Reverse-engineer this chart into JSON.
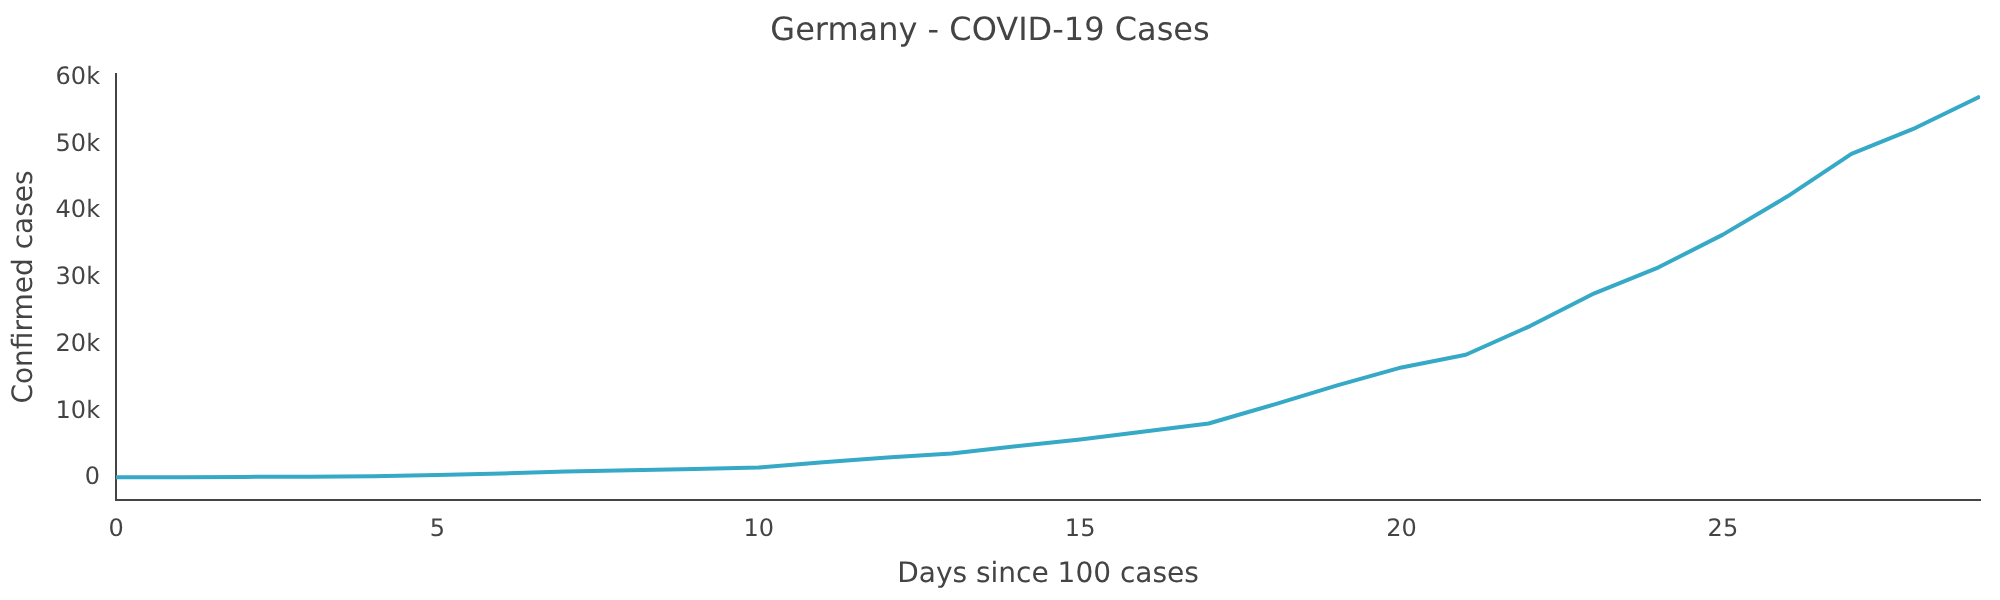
{
  "chart_data": {
    "type": "line",
    "title": "Germany - COVID-19 Cases",
    "xlabel": "Days since 100 cases",
    "ylabel": "Confirmed cases",
    "x": [
      0,
      1,
      2,
      3,
      4,
      5,
      6,
      7,
      8,
      9,
      10,
      11,
      12,
      13,
      14,
      15,
      16,
      17,
      18,
      19,
      20,
      21,
      22,
      23,
      24,
      25,
      26,
      27,
      28,
      29
    ],
    "series": [
      {
        "color": "#35a9c6",
        "values": [
          130,
          160,
          200,
          240,
          300,
          500,
          700,
          1000,
          1200,
          1400,
          1600,
          2400,
          3100,
          3700,
          4800,
          5800,
          7000,
          8200,
          11000,
          13900,
          16600,
          18500,
          22800,
          27700,
          31600,
          36500,
          42200,
          48600,
          52500,
          57200
        ]
      }
    ],
    "xlim": [
      0,
      29
    ],
    "xticks": [
      0,
      5,
      10,
      15,
      20,
      25
    ],
    "ylim": [
      -3200,
      60500
    ],
    "yticks": [
      {
        "value": 0,
        "label": "0"
      },
      {
        "value": 10000,
        "label": "10k"
      },
      {
        "value": 20000,
        "label": "20k"
      },
      {
        "value": 30000,
        "label": "30k"
      },
      {
        "value": 40000,
        "label": "40k"
      },
      {
        "value": 50000,
        "label": "50k"
      },
      {
        "value": 60000,
        "label": "60k"
      }
    ],
    "grid": false,
    "legend": false,
    "marker": "none",
    "line_style": "solid"
  }
}
